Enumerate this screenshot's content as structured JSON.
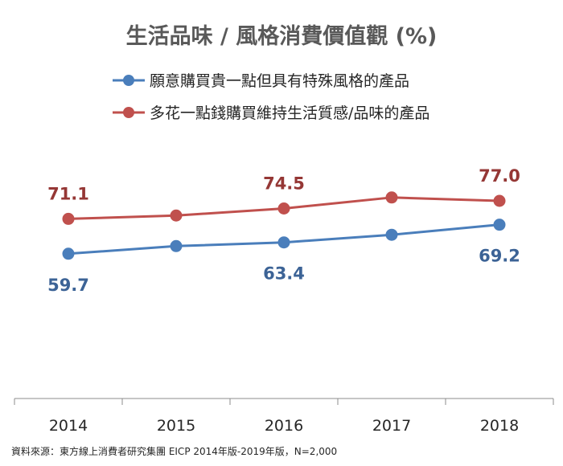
{
  "chart_data": {
    "type": "line",
    "title": "生活品味 / 風格消費價值觀 (%)",
    "categories": [
      "2014",
      "2015",
      "2016",
      "2017",
      "2018"
    ],
    "ylim": [
      0,
      100
    ],
    "grid": false,
    "legend_position": "top",
    "series": [
      {
        "name": "願意購買貴一點但具有特殊風格的產品",
        "color": "#4A7EBB",
        "label_color": "#3C6396",
        "values": [
          59.7,
          62.2,
          63.4,
          65.9,
          69.2
        ],
        "labeled": [
          true,
          false,
          true,
          false,
          true
        ]
      },
      {
        "name": "多花一點錢購買維持生活質感/品味的產品",
        "color": "#C0504D",
        "label_color": "#953735",
        "values": [
          71.1,
          72.2,
          74.5,
          78.1,
          77.0
        ],
        "labeled": [
          true,
          false,
          true,
          false,
          true
        ]
      }
    ]
  },
  "source": "資料來源：東方線上消費者研究集團 EICP 2014年版-2019年版，N=2,000"
}
